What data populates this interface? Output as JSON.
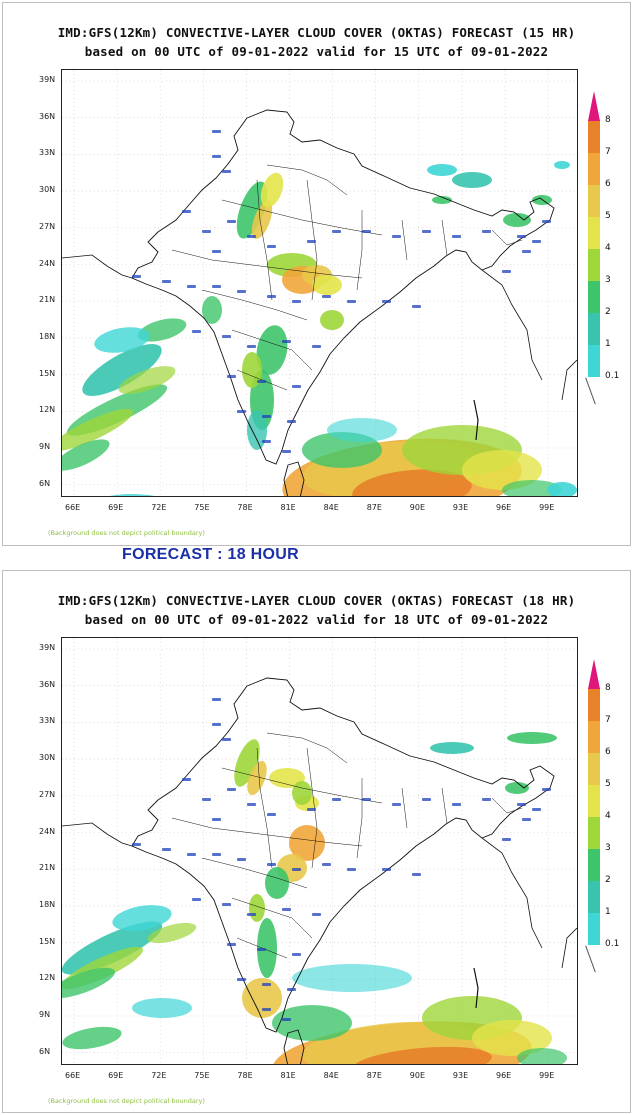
{
  "panels": [
    {
      "title_line1": "IMD:GFS(12Km) CONVECTIVE-LAYER CLOUD COVER (OKTAS) FORECAST (15 HR)",
      "title_line2": "based on 00 UTC of 09-01-2022 valid for 15 UTC of 09-01-2022",
      "footnote": "(Background does not depict political boundary)"
    },
    {
      "title_line1": "IMD:GFS(12Km) CONVECTIVE-LAYER CLOUD COVER (OKTAS) FORECAST (18 HR)",
      "title_line2": "based on 00 UTC of 09-01-2022 valid for 18 UTC of 09-01-2022",
      "footnote": "(Background does not depict political boundary)"
    }
  ],
  "section_heading": "FORECAST : 18 HOUR",
  "map": {
    "lat_ticks": [
      "39N",
      "36N",
      "33N",
      "30N",
      "27N",
      "24N",
      "21N",
      "18N",
      "15N",
      "12N",
      "9N",
      "6N"
    ],
    "lon_ticks": [
      "66E",
      "69E",
      "72E",
      "75E",
      "78E",
      "81E",
      "84E",
      "87E",
      "90E",
      "93E",
      "96E",
      "99E"
    ]
  },
  "legend": {
    "labels": [
      "8",
      "7",
      "6",
      "5",
      "4",
      "3",
      "2",
      "1",
      "0.1"
    ],
    "colors": [
      "#e0177a",
      "#e7812a",
      "#f0a63a",
      "#e8c84a",
      "#e3e44a",
      "#9fd63a",
      "#3ec46a",
      "#39c4b0",
      "#3fd6d6"
    ],
    "unit": "OKTAS"
  },
  "colors": {
    "boundary": "#111111",
    "station_labels": "#1f3fbf",
    "grid": "#c8c8c8",
    "heading": "#1a2fa8"
  }
}
